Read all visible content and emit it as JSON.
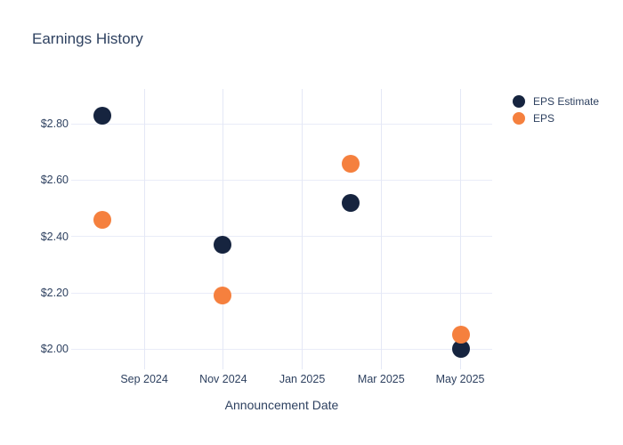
{
  "chart_data": {
    "type": "scatter",
    "title": "Earnings History",
    "xlabel": "Announcement Date",
    "ylabel": "",
    "grid": true,
    "legend_position": "right-top",
    "background_color": "#ffffff",
    "text_color": "#2e4160",
    "grid_color": "#e9ecf8",
    "x_unit": "months_since_2024_01",
    "xlim_months": [
      6.15,
      16.81
    ],
    "ylim": [
      1.944,
      2.924
    ],
    "x_ticks": [
      {
        "label": "Sep 2024",
        "m": 8
      },
      {
        "label": "Nov 2024",
        "m": 10
      },
      {
        "label": "Jan 2025",
        "m": 12
      },
      {
        "label": "Mar 2025",
        "m": 14
      },
      {
        "label": "May 2025",
        "m": 16
      }
    ],
    "y_ticks": [
      {
        "label": "$2.00",
        "value": 2.0
      },
      {
        "label": "$2.20",
        "value": 2.2
      },
      {
        "label": "$2.40",
        "value": 2.4
      },
      {
        "label": "$2.60",
        "value": 2.6
      },
      {
        "label": "$2.80",
        "value": 2.8
      }
    ],
    "series": [
      {
        "name": "EPS Estimate",
        "color": "#16243f",
        "marker_size": 20,
        "points": [
          {
            "x_date_approx": "2024-07-29",
            "m": 6.95,
            "y": 2.83
          },
          {
            "x_date_approx": "2024-10-30",
            "m": 9.98,
            "y": 2.37
          },
          {
            "x_date_approx": "2025-02-07",
            "m": 13.23,
            "y": 2.52
          },
          {
            "x_date_approx": "2025-05-01",
            "m": 16.02,
            "y": 2.0
          }
        ]
      },
      {
        "name": "EPS",
        "color": "#f5803e",
        "marker_size": 20,
        "points": [
          {
            "x_date_approx": "2024-07-29",
            "m": 6.95,
            "y": 2.46
          },
          {
            "x_date_approx": "2024-10-30",
            "m": 9.98,
            "y": 2.19
          },
          {
            "x_date_approx": "2025-02-07",
            "m": 13.23,
            "y": 2.66
          },
          {
            "x_date_approx": "2025-05-01",
            "m": 16.02,
            "y": 2.05
          }
        ]
      }
    ]
  }
}
